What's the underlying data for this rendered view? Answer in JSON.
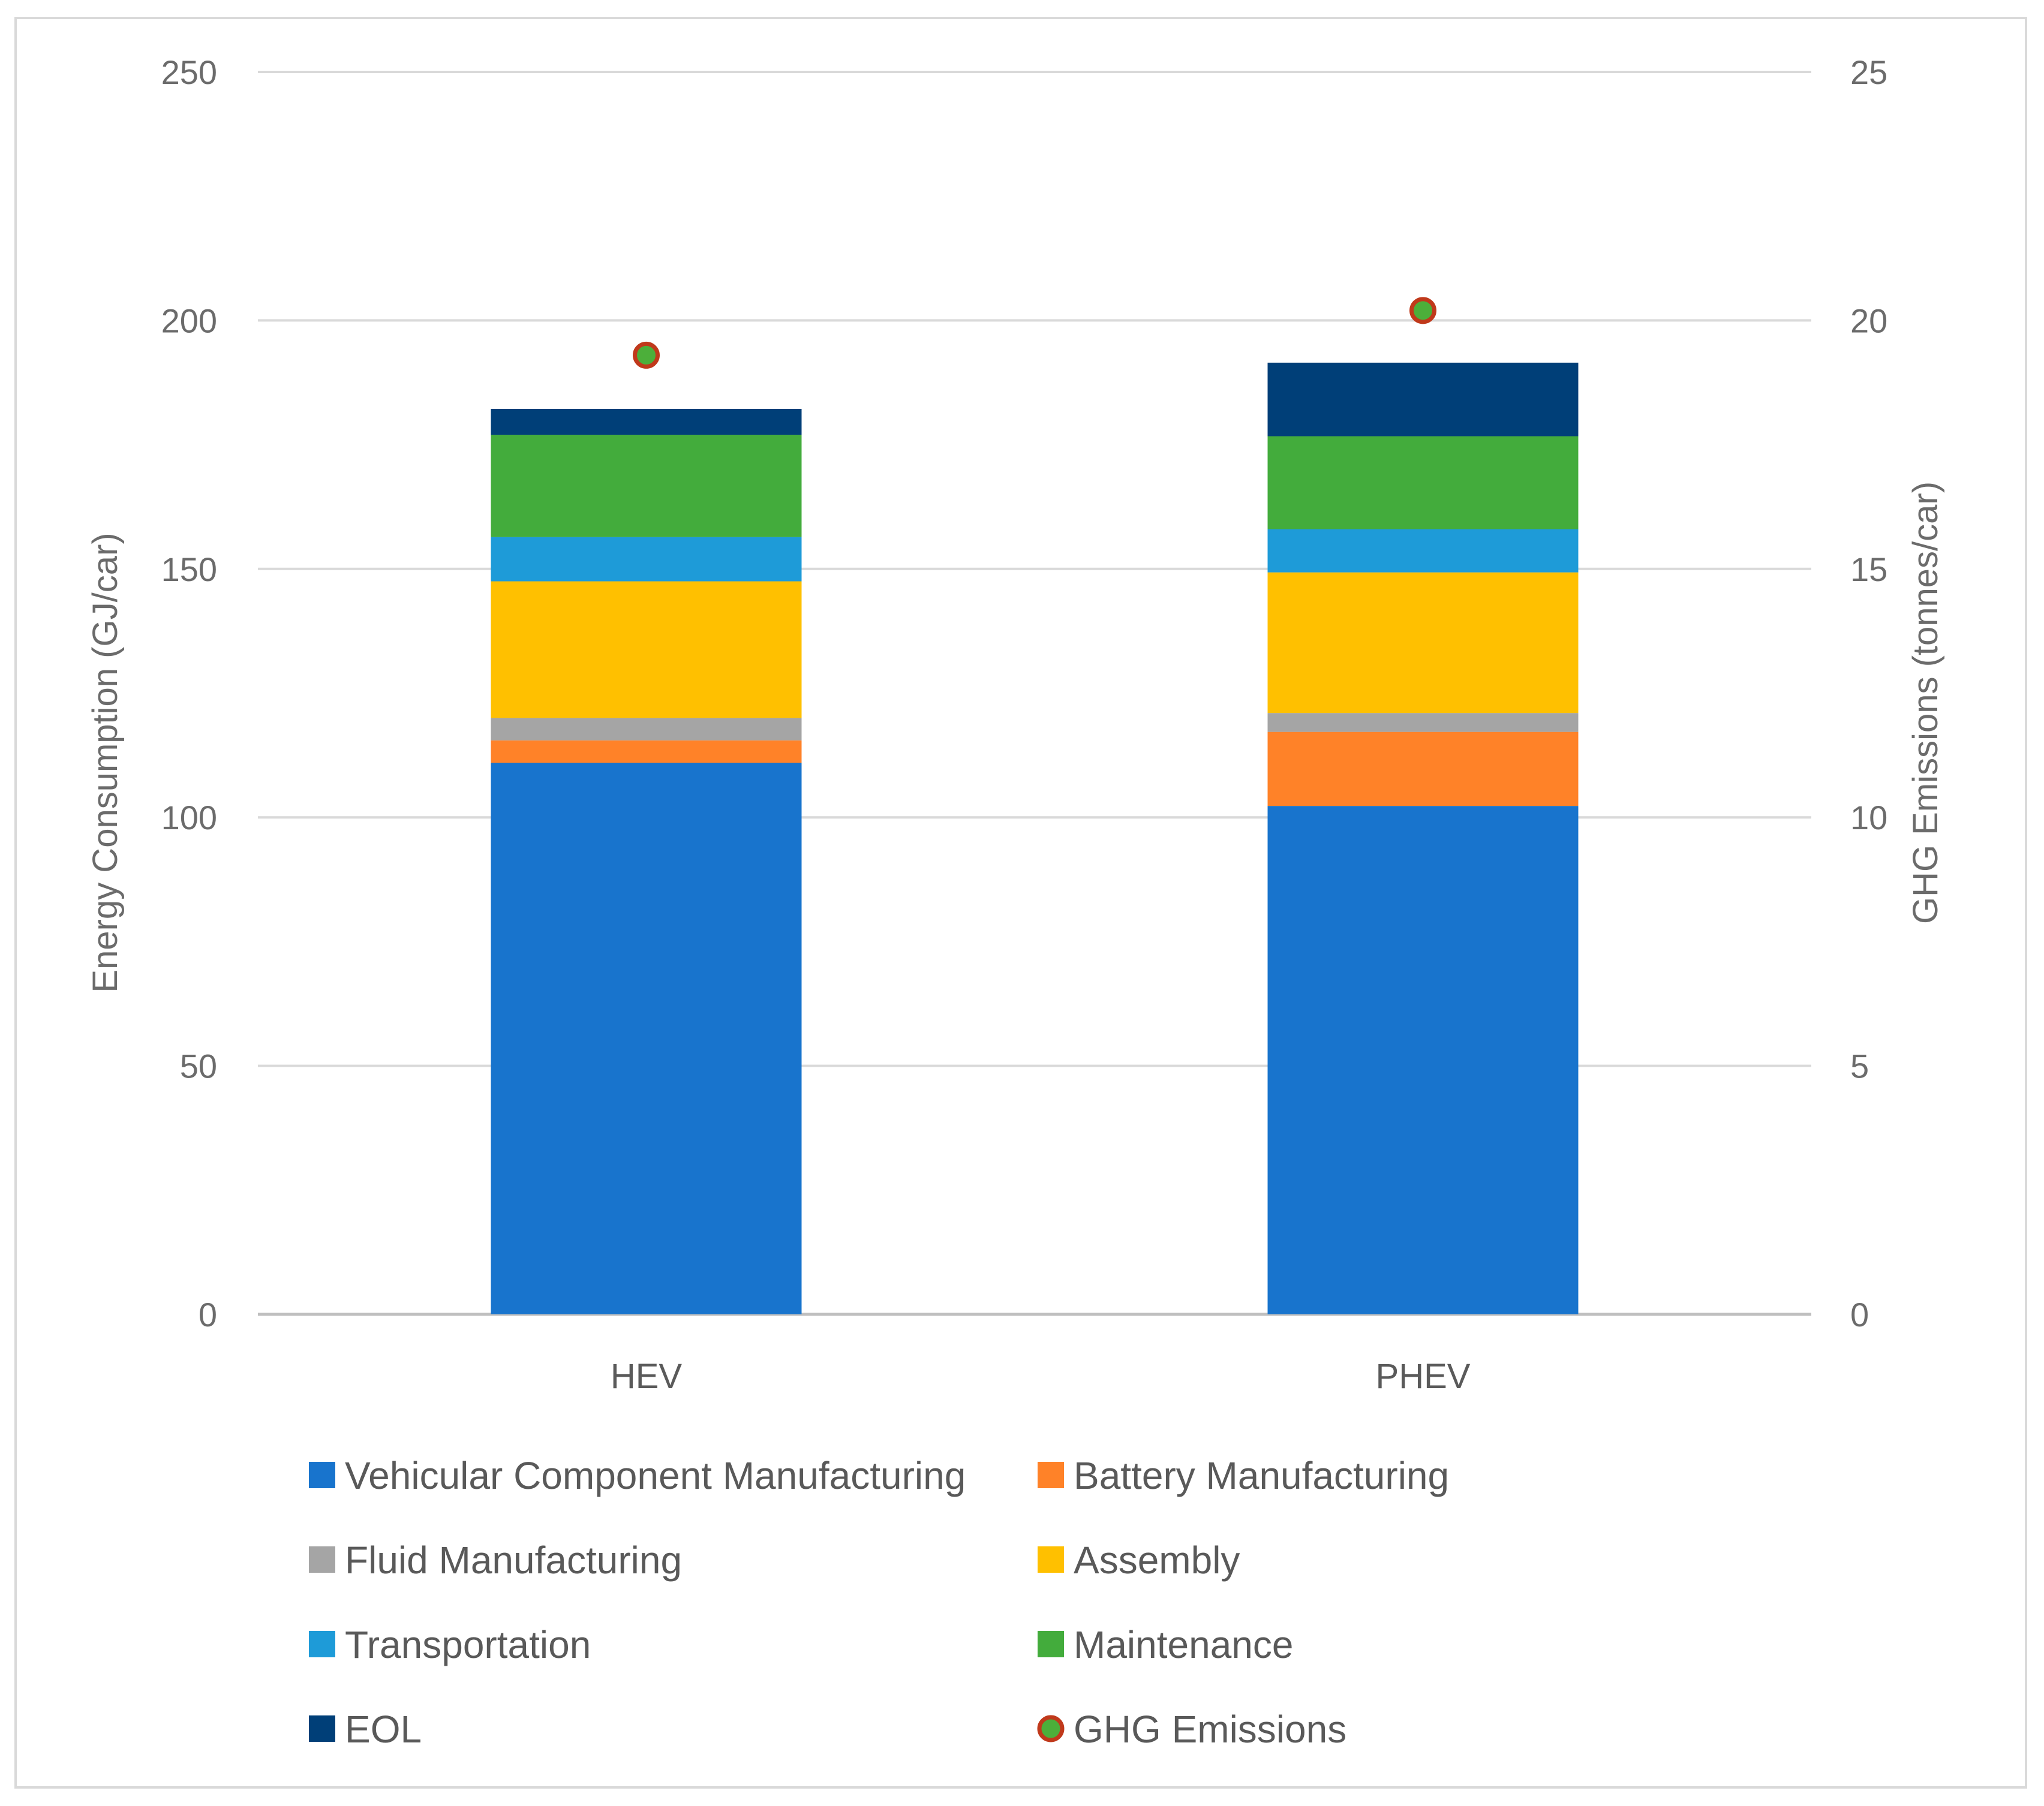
{
  "chart_data": {
    "type": "bar",
    "stacked": true,
    "categories": [
      "HEV",
      "PHEV"
    ],
    "series": [
      {
        "name": "Vehicular Component Manufacturing",
        "color": "#1874CD",
        "values": [
          111,
          102.3
        ]
      },
      {
        "name": "Battery Manufacturing",
        "color": "#FF8228",
        "values": [
          4.5,
          14.9
        ]
      },
      {
        "name": "Fluid Manufacturing",
        "color": "#A5A5A5",
        "values": [
          4.5,
          3.8
        ]
      },
      {
        "name": "Assembly",
        "color": "#FFC000",
        "values": [
          27.5,
          28.3
        ]
      },
      {
        "name": "Transportation",
        "color": "#1E9BD8",
        "values": [
          8.9,
          8.7
        ]
      },
      {
        "name": "Maintenance",
        "color": "#43AC3C",
        "values": [
          20.6,
          18.7
        ]
      },
      {
        "name": "EOL",
        "color": "#003F78",
        "values": [
          5.2,
          14.8
        ]
      }
    ],
    "line_series": {
      "name": "GHG Emissions",
      "axis": "right",
      "marker_fill": "#4CAF3A",
      "marker_edge": "#C0391B",
      "values": [
        19.3,
        20.2
      ]
    },
    "y_left": {
      "label": "Energy Consumption (GJ/car)",
      "ylim": [
        0,
        250
      ],
      "ticks": [
        0,
        50,
        100,
        150,
        200,
        250
      ]
    },
    "y_right": {
      "label": "GHG Emissions (tonnes/car)",
      "ylim": [
        0,
        25
      ],
      "ticks": [
        0,
        5,
        10,
        15,
        20,
        25
      ]
    },
    "grid": true,
    "legend_position": "bottom"
  }
}
